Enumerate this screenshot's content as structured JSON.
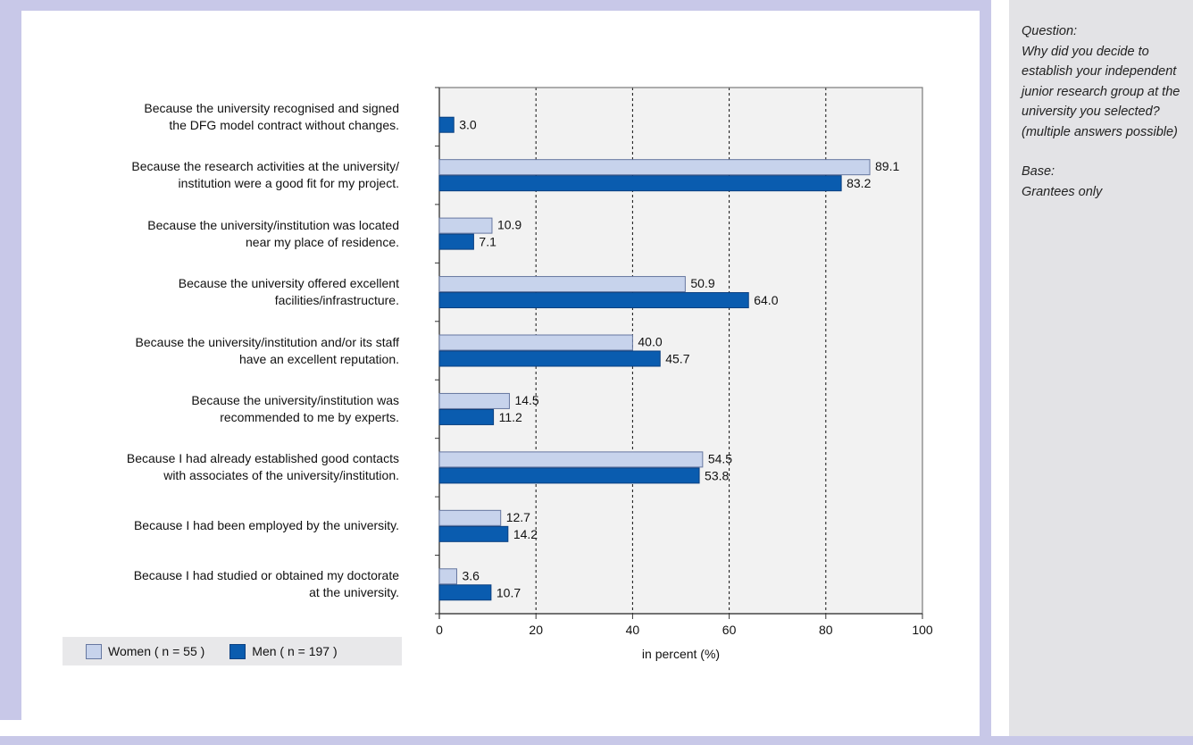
{
  "side_panel": {
    "question_heading": "Question:",
    "question_text": "Why did you decide to establish your independent junior research group at the university you selected? (multiple answers possible)",
    "base_heading": "Base:",
    "base_text": "Grantees only"
  },
  "legend": {
    "women_label": "Women  ( n = 55 )",
    "men_label": "Men ( n = 197 )"
  },
  "colors": {
    "women": "#c7d3ec",
    "women_border": "#6677a0",
    "men": "#0a5caf",
    "plot_background": "#f2f2f2"
  },
  "chart_data": {
    "type": "bar",
    "orientation": "horizontal",
    "xlabel": "in percent (%)",
    "xlim": [
      0,
      100
    ],
    "xticks": [
      0,
      20,
      40,
      60,
      80,
      100
    ],
    "grid": "dashed vertical",
    "legend_position": "bottom-left",
    "categories": [
      [
        "Because the university recognised and signed",
        "the DFG model contract without changes."
      ],
      [
        "Because the research activities at the university/",
        "institution were a good fit for my project."
      ],
      [
        "Because the university/institution was located",
        "near my place of residence."
      ],
      [
        "Because the university offered excellent",
        "facilities/infrastructure."
      ],
      [
        "Because the university/institution and/or its staff",
        "have an excellent reputation."
      ],
      [
        "Because the university/institution was",
        "recommended to me by experts."
      ],
      [
        "Because I had already established good contacts",
        "with associates of the university/institution."
      ],
      [
        "Because I had been employed by the university."
      ],
      [
        "Because I had studied or obtained my doctorate",
        "at the university."
      ]
    ],
    "series": [
      {
        "name": "Women  ( n = 55 )",
        "values": [
          null,
          89.1,
          10.9,
          50.9,
          40.0,
          14.5,
          54.5,
          12.7,
          3.6
        ]
      },
      {
        "name": "Men ( n = 197 )",
        "values": [
          3.0,
          83.2,
          7.1,
          64.0,
          45.7,
          11.2,
          53.8,
          14.2,
          10.7
        ]
      }
    ]
  }
}
